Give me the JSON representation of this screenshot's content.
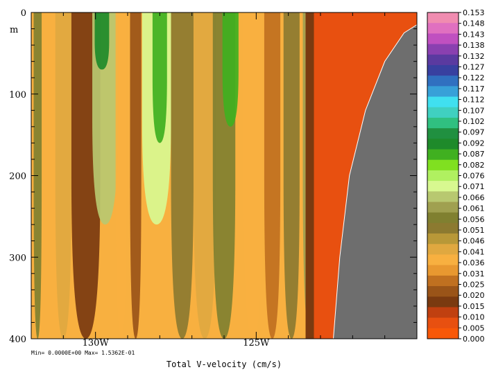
{
  "chart_data": {
    "type": "heatmap",
    "title": "",
    "xlabel": "Total V-velocity (cm/s)",
    "ylabel": "m",
    "x_ticks": [
      "130W",
      "125W"
    ],
    "x_tick_values": [
      -130,
      -125
    ],
    "xlim": [
      -132,
      -120
    ],
    "y_ticks": [
      "0",
      "100",
      "200",
      "300",
      "400"
    ],
    "y_tick_values": [
      0,
      100,
      200,
      300,
      400
    ],
    "ylim": [
      0,
      400
    ],
    "y_inverted": true,
    "min_max_text": "Min= 0.0000E+00  Max= 1.5362E-01",
    "colorbar": {
      "labels": [
        "0.153",
        "0.148",
        "0.143",
        "0.138",
        "0.132",
        "0.127",
        "0.122",
        "0.117",
        "0.112",
        "0.107",
        "0.102",
        "0.097",
        "0.092",
        "0.087",
        "0.082",
        "0.076",
        "0.071",
        "0.066",
        "0.061",
        "0.056",
        "0.051",
        "0.046",
        "0.041",
        "0.036",
        "0.031",
        "0.025",
        "0.020",
        "0.015",
        "0.010",
        "0.005",
        "0.000"
      ],
      "colors": [
        "#f08cb0",
        "#e070c0",
        "#c050c0",
        "#8a40b0",
        "#5a3aa0",
        "#3840a0",
        "#3070c0",
        "#38a0d8",
        "#40e0f0",
        "#40d0c0",
        "#30c080",
        "#209040",
        "#1e8a2a",
        "#40b020",
        "#80e020",
        "#b0f060",
        "#d8f890",
        "#b8c870",
        "#a0a050",
        "#808030",
        "#8c7a30",
        "#b89838",
        "#e0a840",
        "#f8b040",
        "#e89830",
        "#c07020",
        "#9a5418",
        "#7a3a10",
        "#c04010",
        "#e85010",
        "#f85808"
      ],
      "min": 0.0,
      "max": 0.153
    },
    "contours": [
      {
        "x_center": -131.8,
        "width": 0.25,
        "top": 0,
        "bottom": 400,
        "value": 0.058
      },
      {
        "x_center": -131.0,
        "width": 0.5,
        "top": 0,
        "bottom": 400,
        "value": 0.04
      },
      {
        "x_center": -130.3,
        "width": 0.9,
        "top": 0,
        "bottom": 400,
        "value": 0.017
      },
      {
        "x_center": -129.7,
        "width": 0.8,
        "top": 0,
        "bottom": 260,
        "value": 0.066
      },
      {
        "x_center": -129.8,
        "width": 0.45,
        "top": 0,
        "bottom": 70,
        "value": 0.09
      },
      {
        "x_center": -129.2,
        "width": 0.35,
        "top": 0,
        "bottom": 400,
        "value": 0.038
      },
      {
        "x_center": -128.75,
        "width": 0.35,
        "top": 0,
        "bottom": 400,
        "value": 0.022
      },
      {
        "x_center": -128.1,
        "width": 0.9,
        "top": 0,
        "bottom": 260,
        "value": 0.07
      },
      {
        "x_center": -128.0,
        "width": 0.45,
        "top": 0,
        "bottom": 160,
        "value": 0.088
      },
      {
        "x_center": -127.3,
        "width": 0.7,
        "top": 0,
        "bottom": 400,
        "value": 0.052
      },
      {
        "x_center": -126.6,
        "width": 0.7,
        "top": 0,
        "bottom": 400,
        "value": 0.042
      },
      {
        "x_center": -126.0,
        "width": 0.7,
        "top": 0,
        "bottom": 400,
        "value": 0.055
      },
      {
        "x_center": -125.8,
        "width": 0.5,
        "top": 0,
        "bottom": 140,
        "value": 0.085
      },
      {
        "x_center": -125.1,
        "width": 0.6,
        "top": 0,
        "bottom": 400,
        "value": 0.038
      },
      {
        "x_center": -124.5,
        "width": 0.5,
        "top": 0,
        "bottom": 400,
        "value": 0.025
      },
      {
        "x_center": -123.9,
        "width": 0.5,
        "top": 0,
        "bottom": 400,
        "value": 0.05
      },
      {
        "x_center": -123.3,
        "width": 0.5,
        "top": 0,
        "bottom": 400,
        "value": 0.062
      },
      {
        "x_center": -122.8,
        "width": 0.35,
        "top": 0,
        "bottom": 400,
        "value": 0.018
      },
      {
        "x_center": -122.6,
        "width": 0.5,
        "top": 0,
        "bottom": 8,
        "value": 0.125
      }
    ],
    "background_value": 0.036,
    "shelf_value": 0.005,
    "shelf_edge": [
      [
        -122.6,
        400
      ],
      [
        -122.4,
        300
      ],
      [
        -122.1,
        200
      ],
      [
        -121.6,
        120
      ],
      [
        -121.0,
        60
      ],
      [
        -120.4,
        25
      ],
      [
        -120.0,
        15
      ]
    ],
    "land_color": "#6e6e6e"
  }
}
